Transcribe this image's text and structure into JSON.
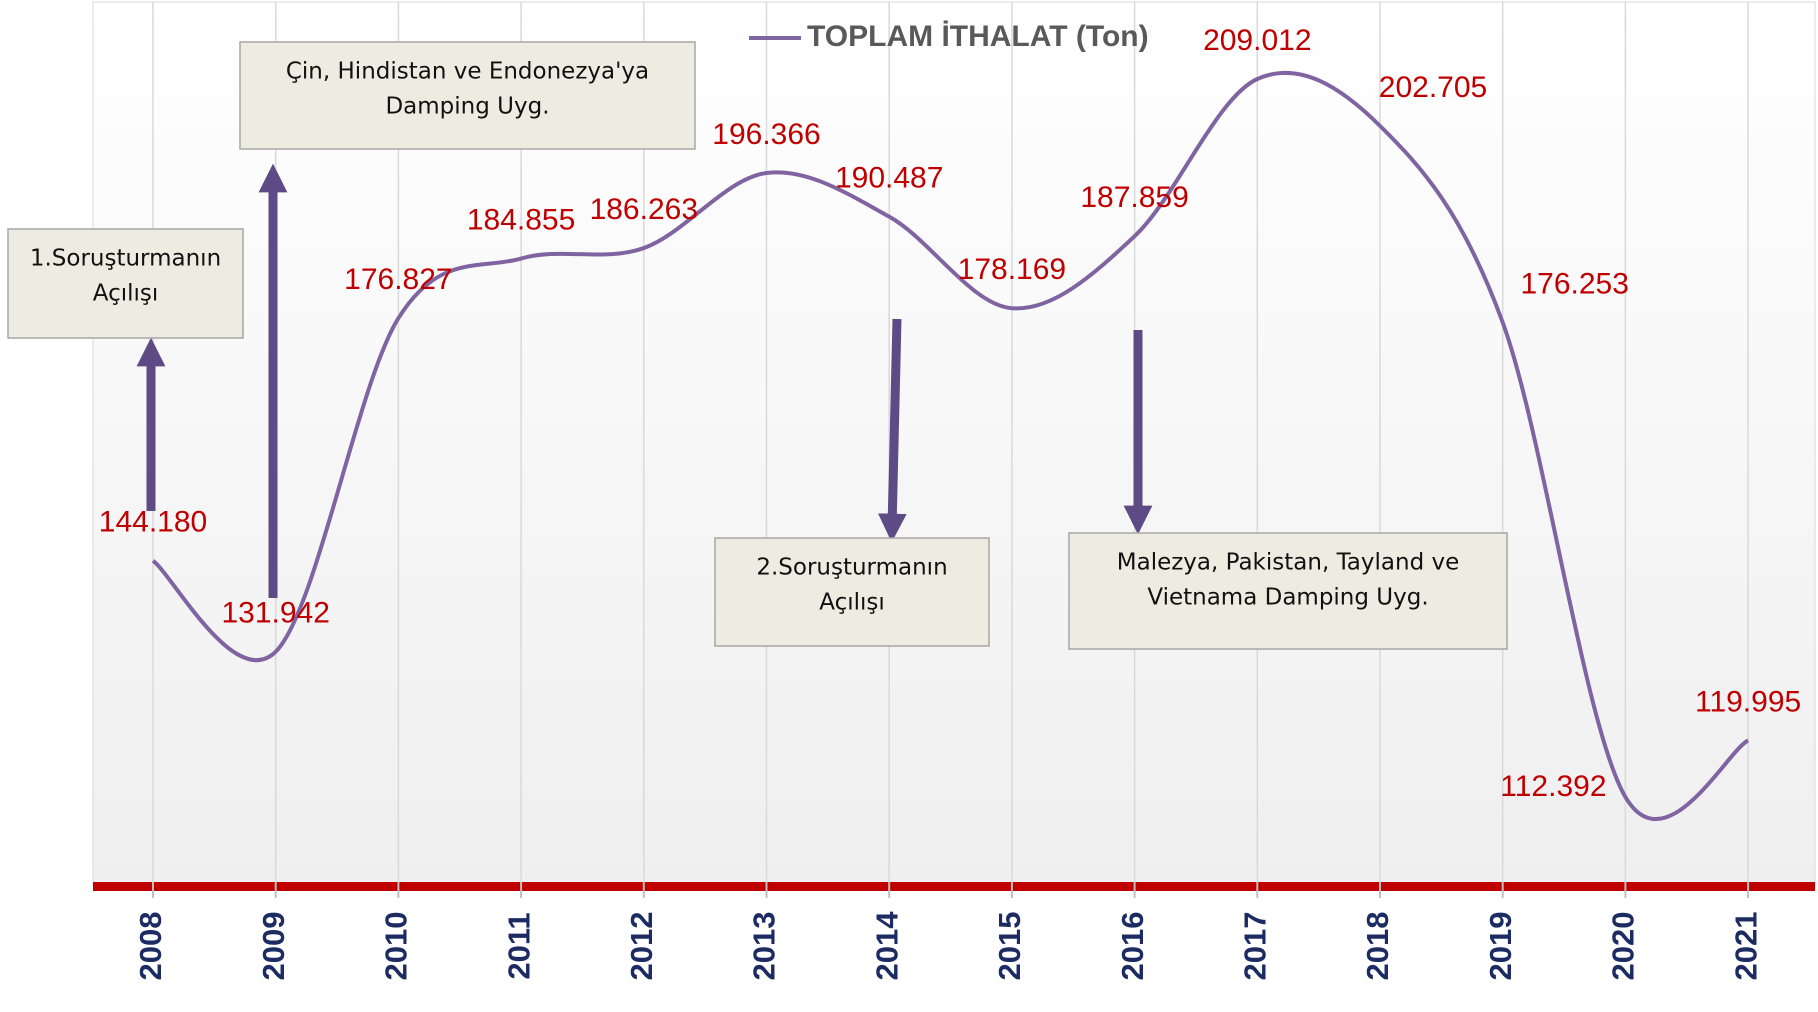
{
  "chart_data": {
    "type": "line",
    "categories": [
      "2008",
      "2009",
      "2010",
      "2011",
      "2012",
      "2013",
      "2014",
      "2015",
      "2016",
      "2017",
      "2018",
      "2019",
      "2020",
      "2021"
    ],
    "series": [
      {
        "name": "TOPLAM İTHALAT (Ton)",
        "color": "#8064a2",
        "values": [
          144180,
          131942,
          176827,
          184855,
          186263,
          196366,
          190487,
          178169,
          187859,
          209012,
          202705,
          176253,
          112392,
          119995
        ],
        "value_labels": [
          "144.180",
          "131.942",
          "176.827",
          "184.855",
          "186.263",
          "196.366",
          "190.487",
          "178.169",
          "187.859",
          "209.012",
          "202.705",
          "176.253",
          "112.392",
          "119.995"
        ],
        "label_color": "#c00000"
      }
    ],
    "annotations": [
      [
        "1.Soruşturmanın",
        "Açılışı"
      ],
      [
        "Çin, Hindistan ve Endonezya'ya",
        "Damping Uyg."
      ],
      [
        "2.Soruşturmanın",
        "Açılışı"
      ],
      [
        "Malezya, Pakistan, Tayland ve",
        "Vietnama Damping Uyg."
      ]
    ],
    "legend": "top",
    "grid": true
  }
}
